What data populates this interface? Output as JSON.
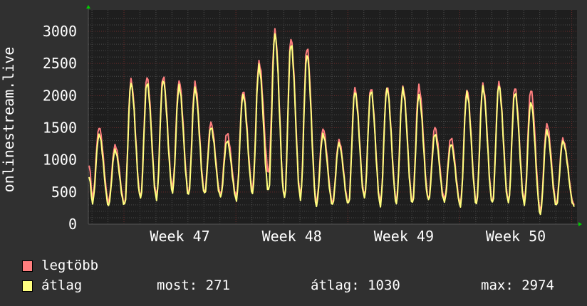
{
  "chart_data": {
    "type": "line",
    "ylabel": "onlinestream.live",
    "ylim": [
      0,
      3000
    ],
    "yticks": [
      "0",
      "500",
      "1000",
      "1500",
      "2000",
      "2500",
      "3000"
    ],
    "xticks": [
      "Week 47",
      "Week 48",
      "Week 49",
      "Week 50"
    ],
    "grid": true,
    "legend_placement": "bottom-left",
    "series": [
      {
        "name": "legtöbb",
        "color": "#ff7f7f",
        "daily_peaks": [
          1510,
          1230,
          2230,
          2280,
          2300,
          2240,
          2190,
          1570,
          1410,
          2080,
          2530,
          2990,
          2870,
          2750,
          1490,
          1300,
          2100,
          2110,
          2150,
          2140,
          2140,
          1500,
          1340,
          2100,
          2170,
          2190,
          2120,
          2100,
          1560,
          1320
        ],
        "daily_troughs": [
          420,
          360,
          320,
          420,
          430,
          580,
          500,
          500,
          460,
          430,
          560,
          820,
          420,
          430,
          340,
          350,
          330,
          440,
          340,
          380,
          360,
          400,
          390,
          330,
          360,
          350,
          360,
          360,
          220,
          330,
          300
        ]
      },
      {
        "name": "átlag",
        "color": "#ffff7f",
        "daily_peaks": [
          1400,
          1150,
          2180,
          2200,
          2250,
          2150,
          2100,
          1500,
          1300,
          2020,
          2450,
          2940,
          2800,
          2650,
          1400,
          1250,
          2050,
          2080,
          2120,
          2100,
          2000,
          1400,
          1250,
          2050,
          2120,
          2150,
          2050,
          1900,
          1450,
          1280
        ],
        "daily_troughs": [
          340,
          300,
          290,
          380,
          390,
          520,
          460,
          460,
          420,
          390,
          500,
          500,
          380,
          390,
          300,
          310,
          300,
          400,
          300,
          340,
          320,
          360,
          350,
          300,
          320,
          310,
          320,
          320,
          170,
          290,
          271
        ]
      }
    ],
    "legend": {
      "max_label": "legtöbb",
      "avg_label": "átlag",
      "now": "most: 271",
      "average": "átlag: 1030",
      "maximum": "max: 2974"
    }
  }
}
